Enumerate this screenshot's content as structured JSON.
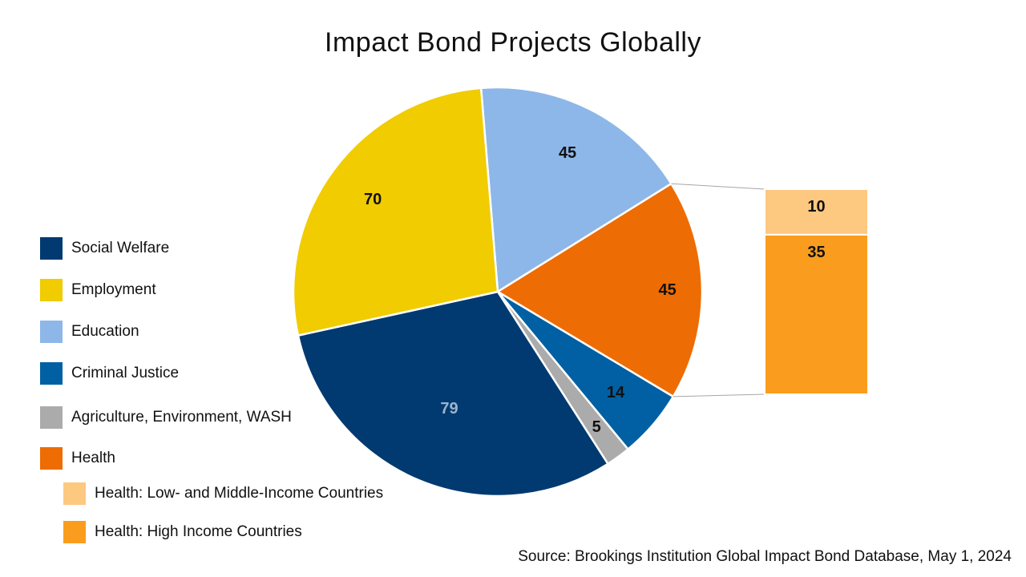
{
  "chart_data": {
    "type": "pie",
    "title": "Impact Bond Projects Globally",
    "slices": [
      {
        "name": "Social Welfare",
        "value": 79,
        "color": "#003A70"
      },
      {
        "name": "Employment",
        "value": 70,
        "color": "#F0CC00"
      },
      {
        "name": "Education",
        "value": 45,
        "color": "#8DB7E8"
      },
      {
        "name": "Health",
        "value": 45,
        "color": "#EE6C04"
      },
      {
        "name": "Criminal Justice",
        "value": 14,
        "color": "#0060A3"
      },
      {
        "name": "Agriculture, Environment, WASH",
        "value": 5,
        "color": "#ABABAB"
      }
    ],
    "breakdown": {
      "parent": "Health",
      "items": [
        {
          "name": "Health: Low- and Middle-Income Countries",
          "value": 10,
          "color": "#FDC880"
        },
        {
          "name": "Health: High Income Countries",
          "value": 35,
          "color": "#FA9D1E"
        }
      ]
    },
    "legend": {
      "placement": "left",
      "items": [
        {
          "label": "Social Welfare",
          "color": "#003A70"
        },
        {
          "label": "Employment",
          "color": "#F0CC00"
        },
        {
          "label": "Education",
          "color": "#8DB7E8"
        },
        {
          "label": "Criminal Justice",
          "color": "#0060A3"
        },
        {
          "label": "Agriculture, Environment, WASH",
          "color": "#ABABAB"
        },
        {
          "label": "Health",
          "color": "#EE6C04"
        },
        {
          "label": "Health: Low- and Middle-Income Countries",
          "color": "#FDC880"
        },
        {
          "label": "Health: High Income Countries",
          "color": "#FA9D1E"
        }
      ]
    },
    "source": "Source: Brookings Institution Global Impact Bond Database, May 1, 2024"
  }
}
